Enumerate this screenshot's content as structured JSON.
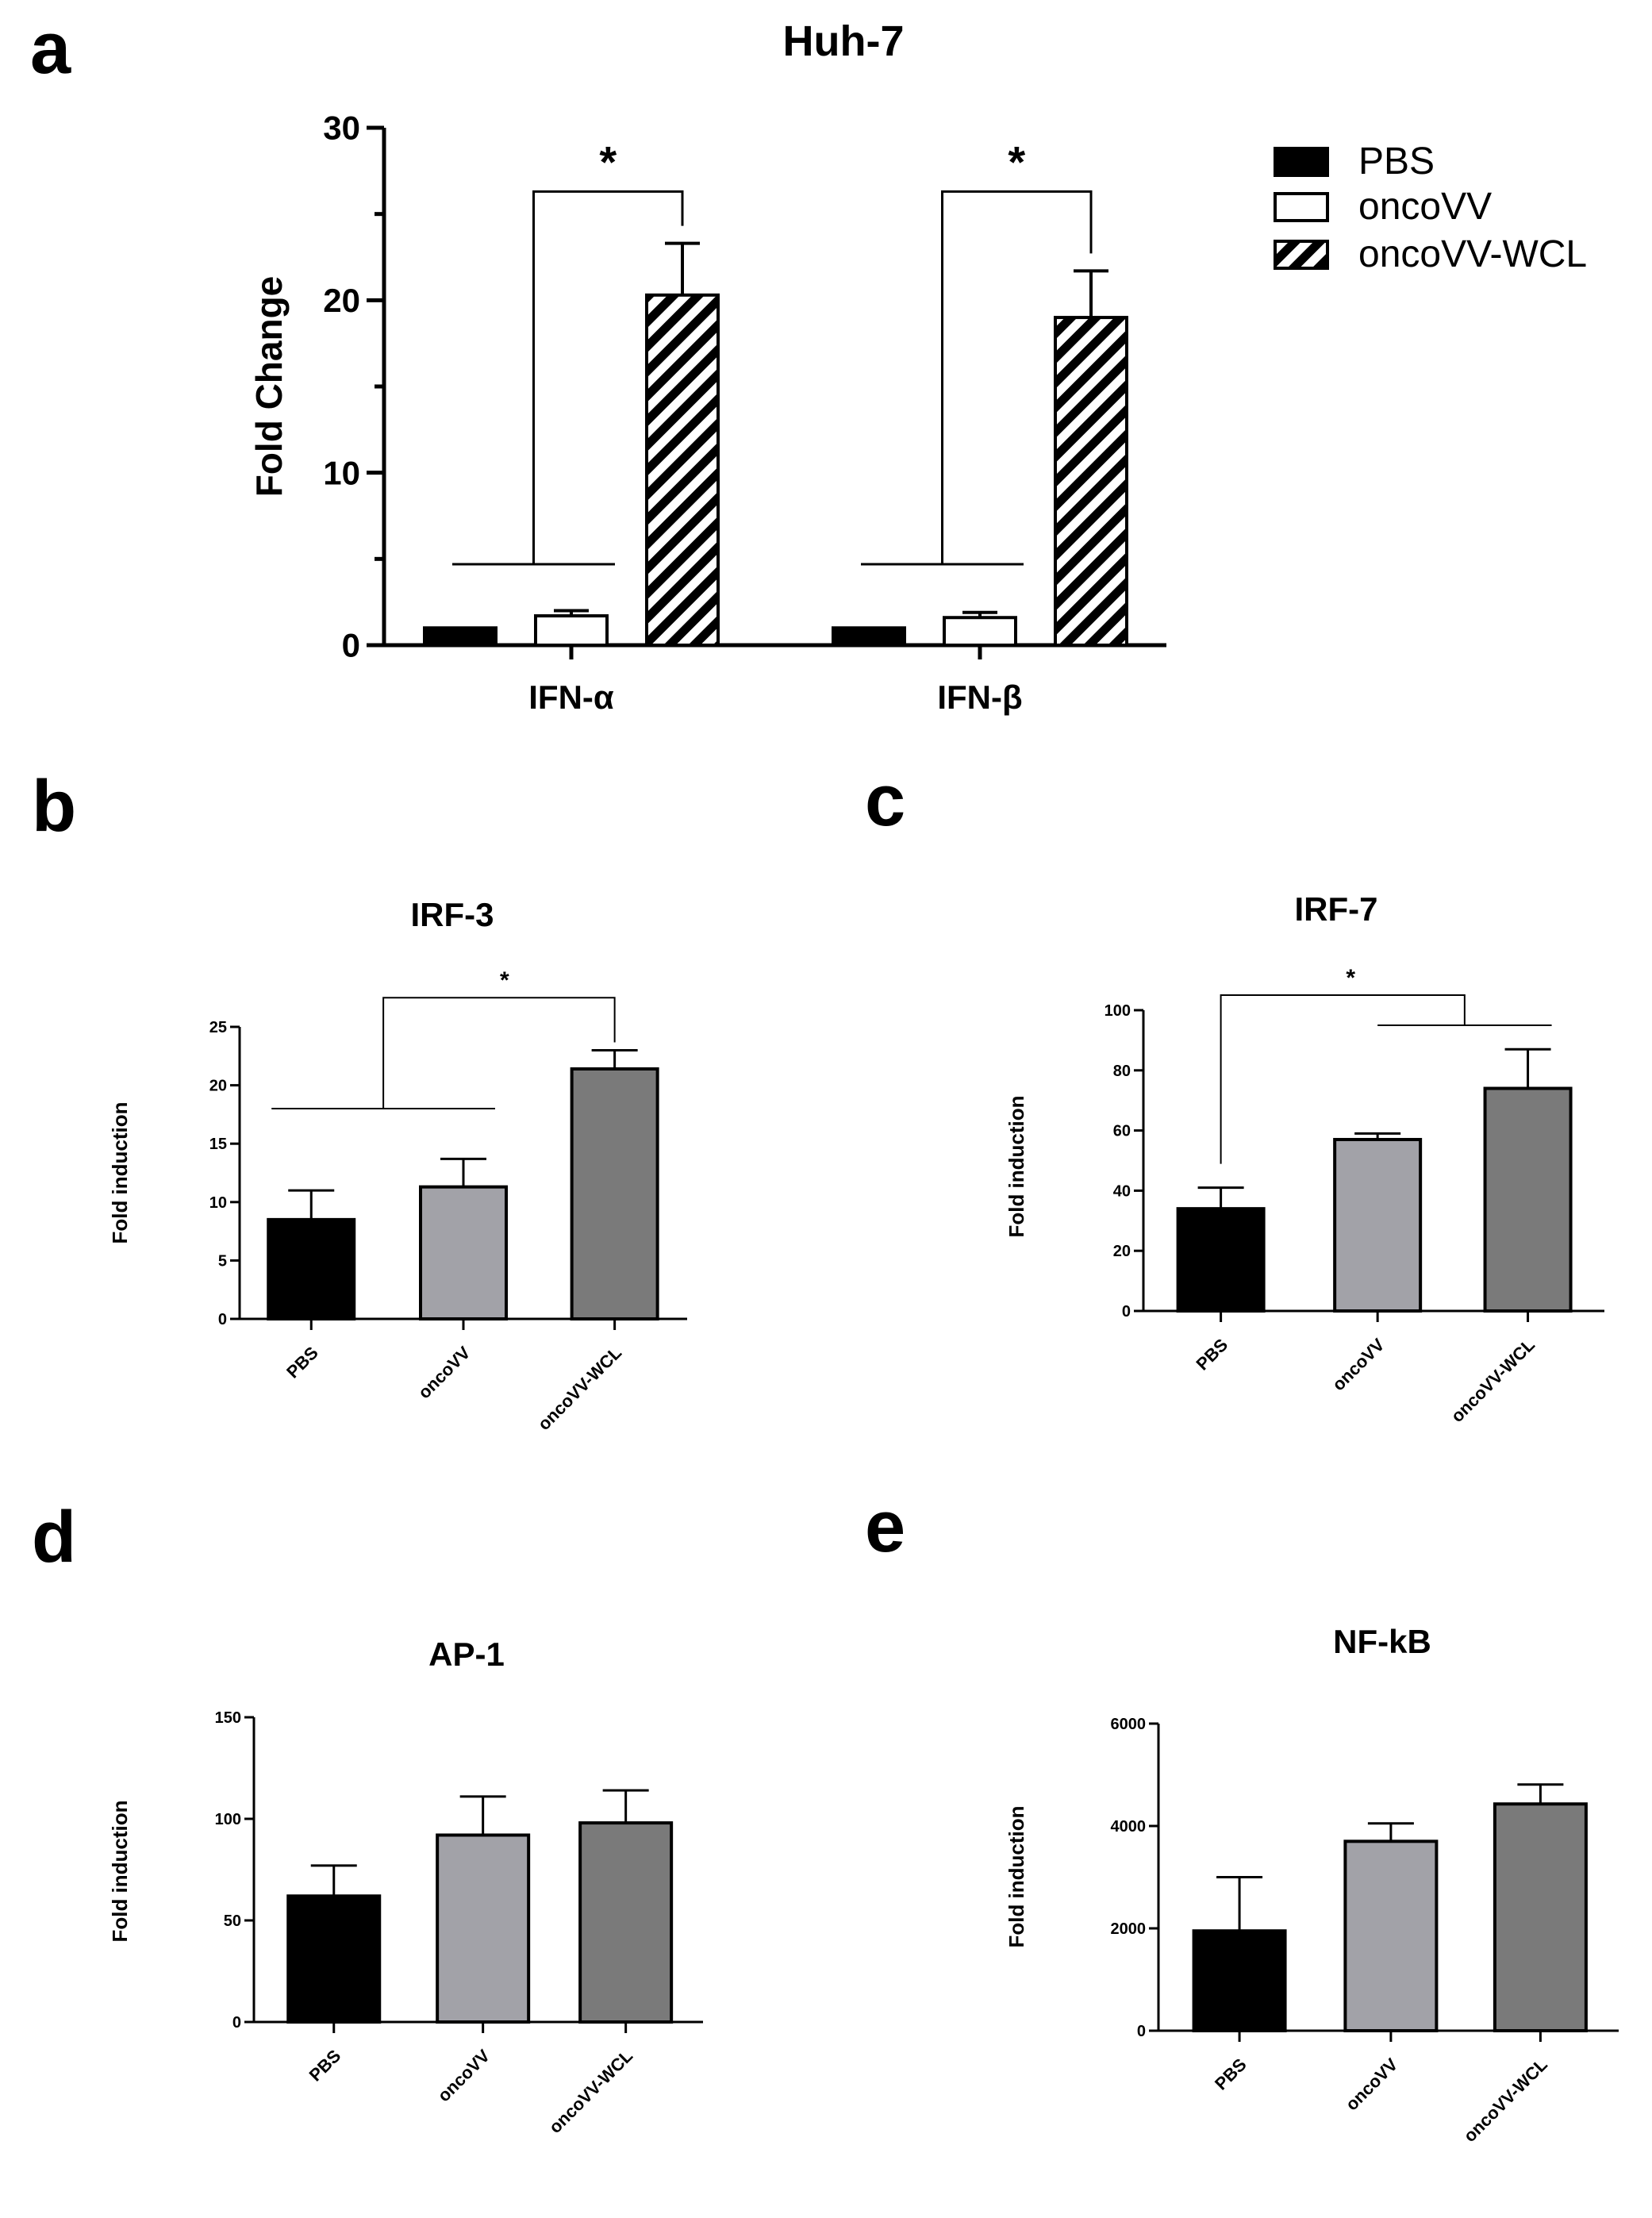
{
  "colors": {
    "pbs": "#000000",
    "oncovv_open": "#ffffff",
    "oncovv_gray": "#a2a2a8",
    "oncovv_wcl_gray": "#7a7a7a",
    "axis": "#000000"
  },
  "chart_data": [
    {
      "id": "a",
      "panel_label": "a",
      "type": "bar",
      "title": "Huh-7",
      "xlabel": "",
      "ylabel": "Fold Change",
      "ylim": [
        0,
        30
      ],
      "yticks": [
        "0",
        "10",
        "20",
        "30"
      ],
      "categories": [
        "IFN-α",
        "IFN-β"
      ],
      "series": [
        {
          "name": "PBS",
          "style": "solid-black",
          "values": [
            1.0,
            1.0
          ],
          "errors": [
            0.0,
            0.0
          ]
        },
        {
          "name": "oncoVV",
          "style": "open",
          "values": [
            1.7,
            1.6
          ],
          "errors": [
            0.3,
            0.3
          ]
        },
        {
          "name": "oncoVV-WCL",
          "style": "hatched",
          "values": [
            20.3,
            19.0
          ],
          "errors": [
            3.0,
            2.7
          ]
        }
      ],
      "legend": {
        "position": "top-right",
        "entries": [
          "PBS",
          "oncoVV",
          "oncoVV-WCL"
        ]
      },
      "annotations": [
        "*",
        "*"
      ]
    },
    {
      "id": "b",
      "panel_label": "b",
      "type": "bar",
      "title": "IRF-3",
      "xlabel": "",
      "ylabel": "Fold induction",
      "ylim": [
        0,
        25
      ],
      "yticks": [
        "0",
        "5",
        "10",
        "15",
        "20",
        "25"
      ],
      "categories": [
        "PBS",
        "oncoVV",
        "oncoVV-WCL"
      ],
      "values": [
        8.5,
        11.3,
        21.4
      ],
      "errors": [
        2.5,
        2.4,
        1.6
      ],
      "annotation": "*"
    },
    {
      "id": "c",
      "panel_label": "c",
      "type": "bar",
      "title": "IRF-7",
      "xlabel": "",
      "ylabel": "Fold induction",
      "ylim": [
        0,
        100
      ],
      "yticks": [
        "0",
        "20",
        "40",
        "60",
        "80",
        "100"
      ],
      "categories": [
        "PBS",
        "oncoVV",
        "oncoVV-WCL"
      ],
      "values": [
        34,
        57,
        74
      ],
      "errors": [
        7,
        2,
        13
      ],
      "annotation": "*"
    },
    {
      "id": "d",
      "panel_label": "d",
      "type": "bar",
      "title": "AP-1",
      "xlabel": "",
      "ylabel": "Fold induction",
      "ylim": [
        0,
        150
      ],
      "yticks": [
        "0",
        "50",
        "100",
        "150"
      ],
      "categories": [
        "PBS",
        "oncoVV",
        "oncoVV-WCL"
      ],
      "values": [
        62,
        92,
        98
      ],
      "errors": [
        15,
        19,
        16
      ]
    },
    {
      "id": "e",
      "panel_label": "e",
      "type": "bar",
      "title": "NF-kB",
      "xlabel": "",
      "ylabel": "Fold induction",
      "ylim": [
        0,
        6000
      ],
      "yticks": [
        "0",
        "2000",
        "4000",
        "6000"
      ],
      "categories": [
        "PBS",
        "oncoVV",
        "oncoVV-WCL"
      ],
      "values": [
        1950,
        3700,
        4430
      ],
      "errors": [
        1050,
        350,
        380
      ]
    }
  ]
}
